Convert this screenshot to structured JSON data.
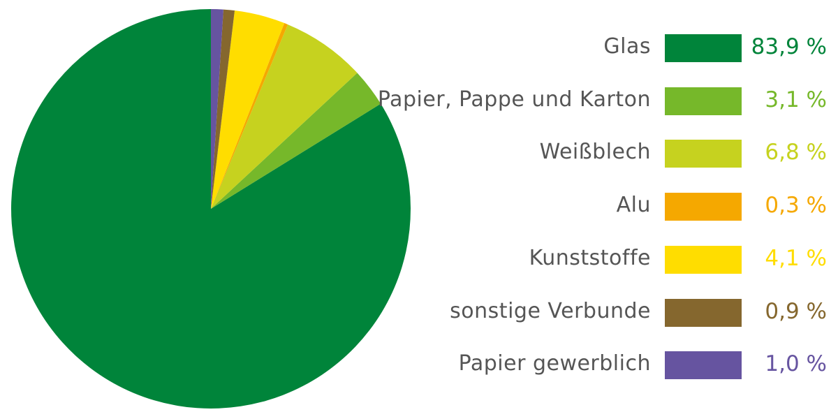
{
  "chart_data": {
    "type": "pie",
    "title": "",
    "unit": "%",
    "legend_position": "right",
    "slices": [
      {
        "label": "Glas",
        "value": 83.9,
        "display": "83,9 %",
        "color": "#00843a"
      },
      {
        "label": "Papier, Pappe und Karton",
        "value": 3.1,
        "display": "3,1 %",
        "color": "#76b82a"
      },
      {
        "label": "Weißblech",
        "value": 6.8,
        "display": "6,8 %",
        "color": "#c6d21f"
      },
      {
        "label": "Alu",
        "value": 0.3,
        "display": "0,3 %",
        "color": "#f5a800"
      },
      {
        "label": "Kunststoffe",
        "value": 4.1,
        "display": "4,1 %",
        "color": "#ffdd00"
      },
      {
        "label": "sonstige Verbunde",
        "value": 0.9,
        "display": "0,9 %",
        "color": "#85672e"
      },
      {
        "label": "Papier gewerblich",
        "value": 1.0,
        "display": "1,0 %",
        "color": "#6654a0"
      }
    ]
  }
}
